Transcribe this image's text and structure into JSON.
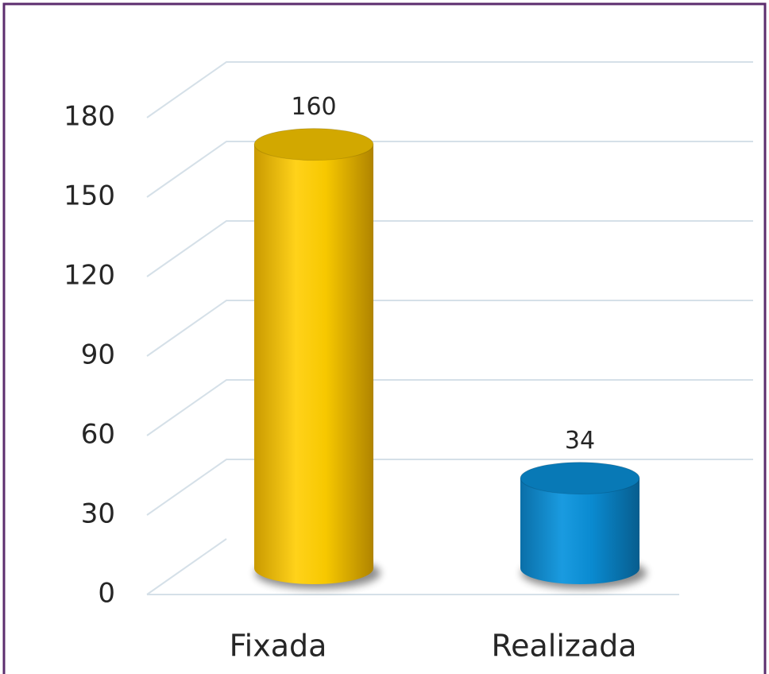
{
  "chart_data": {
    "type": "bar3d",
    "categories": [
      "Fixada",
      "Realizada"
    ],
    "values": [
      160,
      34
    ],
    "colors": [
      "#f0c000",
      "#0a8ad0"
    ],
    "ylim": [
      0,
      180
    ],
    "yticks": [
      0,
      30,
      60,
      90,
      120,
      150,
      180
    ],
    "grid": true
  }
}
